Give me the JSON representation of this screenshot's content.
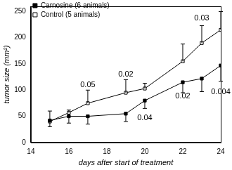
{
  "chart_data": {
    "type": "line",
    "x_label": "days after start of treatment",
    "y_label": "tumor size (mm²)",
    "xlim": [
      14,
      24
    ],
    "xticks": [
      14,
      16,
      18,
      20,
      22,
      24
    ],
    "ylim": [
      0,
      260
    ],
    "yticks": [
      0,
      50,
      100,
      150,
      200,
      250
    ],
    "grid": false,
    "legend": "top-left",
    "x": [
      15,
      16,
      17,
      19,
      20,
      22,
      23,
      24
    ],
    "series": [
      {
        "name": "Carnosine (6 animals)",
        "color": "#000000",
        "marker": "filled_square",
        "values": [
          42,
          50,
          50,
          55,
          80,
          115,
          122,
          147
        ],
        "errors_down": [
          12,
          13,
          15,
          15,
          15,
          20,
          25,
          30
        ]
      },
      {
        "name": "Control (5 animals)",
        "color": "#000000",
        "marker": "open_square",
        "values": [
          40,
          57,
          75,
          95,
          103,
          155,
          190,
          215
        ],
        "errors_up": [
          20,
          5,
          25,
          25,
          10,
          33,
          33,
          35
        ]
      }
    ],
    "annotations": [
      {
        "text": "0.05",
        "x": 17,
        "y": 110
      },
      {
        "text": "0.02",
        "x": 19,
        "y": 130
      },
      {
        "text": "0.03",
        "x": 23,
        "y": 237
      },
      {
        "text": "0.04",
        "x": 20,
        "y": 47
      },
      {
        "text": "0.02",
        "x": 22,
        "y": 88
      },
      {
        "text": "0.004",
        "x": 24,
        "y": 96
      }
    ]
  }
}
